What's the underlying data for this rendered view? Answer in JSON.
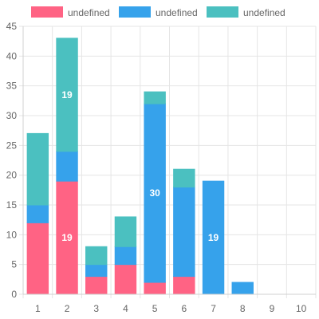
{
  "chart_data": {
    "type": "bar",
    "stacked": true,
    "categories": [
      "1",
      "2",
      "3",
      "4",
      "5",
      "6",
      "7",
      "8",
      "9",
      "10"
    ],
    "series": [
      {
        "name": "undefined",
        "color": "#ff6384",
        "values": [
          12,
          19,
          3,
          5,
          2,
          3,
          0,
          0,
          0,
          0
        ]
      },
      {
        "name": "undefined",
        "color": "#36a2eb",
        "values": [
          3,
          5,
          2,
          3,
          30,
          15,
          19,
          2,
          0,
          0
        ]
      },
      {
        "name": "undefined",
        "color": "#4bc0c0",
        "values": [
          12,
          19,
          3,
          5,
          2,
          3,
          0,
          0,
          0,
          0
        ]
      }
    ],
    "data_labels_shown": [
      {
        "category": "2",
        "series": 0,
        "text": "19"
      },
      {
        "category": "2",
        "series": 2,
        "text": "19"
      },
      {
        "category": "5",
        "series": 1,
        "text": "30"
      },
      {
        "category": "7",
        "series": 1,
        "text": "19"
      }
    ],
    "yticks": [
      "0",
      "5",
      "10",
      "15",
      "20",
      "25",
      "30",
      "35",
      "40",
      "45"
    ],
    "ylim": [
      0,
      45
    ],
    "grid": true,
    "legend_position": "top"
  }
}
